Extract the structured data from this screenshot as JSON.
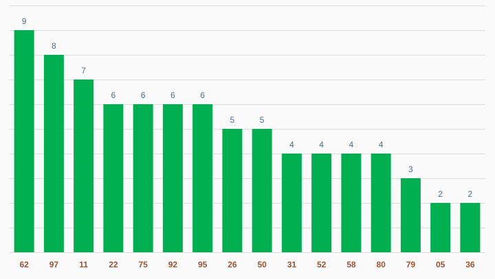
{
  "chart_data": {
    "type": "bar",
    "categories": [
      "62",
      "97",
      "11",
      "22",
      "75",
      "92",
      "95",
      "26",
      "50",
      "31",
      "52",
      "58",
      "80",
      "79",
      "05",
      "36"
    ],
    "values": [
      9,
      8,
      7,
      6,
      6,
      6,
      6,
      5,
      5,
      4,
      4,
      4,
      4,
      3,
      2,
      2
    ],
    "ylim": [
      0,
      10
    ],
    "grid": true,
    "bar_color": "#00b050",
    "value_label_color": "#4a6f8a",
    "category_label_color": "#a0522d",
    "gridline_color": "#dcdcdc"
  }
}
